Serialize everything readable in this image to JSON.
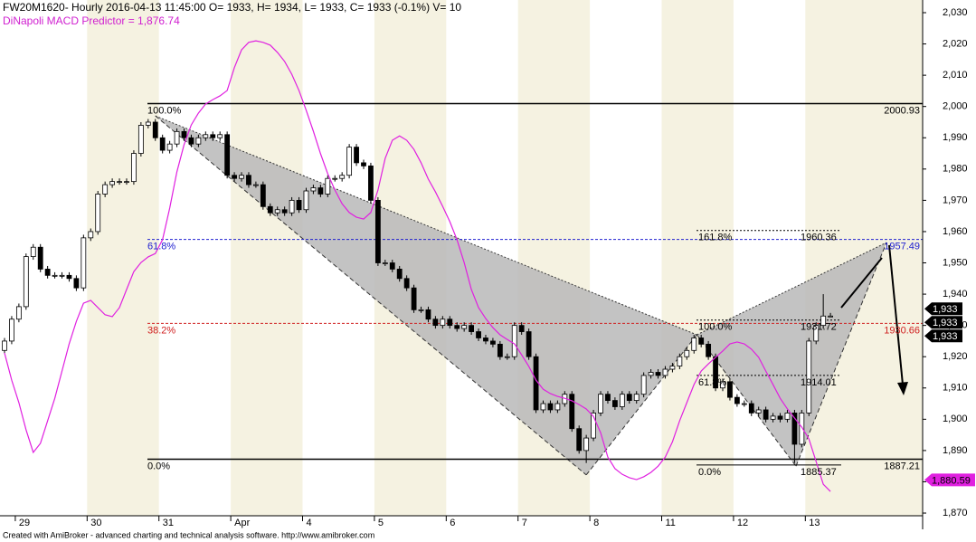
{
  "chart_data": {
    "type": "candlestick",
    "title": "FW20M1620- Hourly 2016-04-13 11:45:00 O= 1933, H= 1934, L= 1933, C= 1933 (-0.1%) V= 10",
    "subtitle": "DiNapoli MACD Predictor = 1,876.74",
    "footer": "Created with AmiBroker - advanced charting and technical analysis software. http://www.amibroker.com",
    "days": [
      "29",
      "30",
      "31",
      "Apr",
      "4",
      "5",
      "6",
      "7",
      "8",
      "11",
      "12",
      "13"
    ],
    "day_start": [
      2,
      12,
      22,
      32,
      42,
      52,
      62,
      72,
      82,
      92,
      102,
      112
    ],
    "open": [
      1922,
      1925,
      1932,
      1936,
      1952,
      1955,
      1948,
      1946,
      1946,
      1946,
      1945,
      1942,
      1958,
      1960,
      1972,
      1975,
      1976,
      1976,
      1976,
      1985,
      1994,
      1995,
      1990,
      1986,
      1988,
      1992,
      1990,
      1988,
      1990,
      1991,
      1990,
      1991,
      1978,
      1977,
      1978,
      1975,
      1975,
      1968,
      1966,
      1967,
      1966,
      1970,
      1967,
      1973,
      1974,
      1972,
      1977,
      1977,
      1978,
      1987,
      1982,
      1981,
      1970,
      1950,
      1950,
      1948,
      1945,
      1942,
      1935,
      1935,
      1932,
      1930,
      1932,
      1930,
      1929,
      1930,
      1928,
      1926,
      1925,
      1924,
      1920,
      1920,
      1930,
      1928,
      1920,
      1903,
      1905,
      1903,
      1905,
      1908,
      1897,
      1890,
      1894,
      1902,
      1908,
      1906,
      1904,
      1908,
      1906,
      1908,
      1914,
      1915,
      1914,
      1916,
      1917,
      1920,
      1922,
      1926,
      1924,
      1920,
      1910,
      1912,
      1907,
      1905,
      1905,
      1902,
      1903,
      1900,
      1901,
      1900,
      1902,
      1892,
      1902,
      1925,
      1930,
      1933
    ],
    "high": [
      1926,
      1933,
      1937,
      1953,
      1956,
      1956,
      1949,
      1947,
      1947,
      1947,
      1946,
      1959,
      1961,
      1973,
      1976,
      1977,
      1977,
      1977,
      1986,
      1995,
      1996,
      1996,
      1991,
      1989,
      1993,
      1993,
      1991,
      1991,
      1992,
      1992,
      1992,
      1992,
      1979,
      1979,
      1979,
      1976,
      1976,
      1969,
      1968,
      1968,
      1971,
      1971,
      1974,
      1975,
      1975,
      1978,
      1978,
      1979,
      1988,
      1988,
      1983,
      1982,
      1971,
      1951,
      1951,
      1949,
      1946,
      1943,
      1936,
      1936,
      1933,
      1933,
      1933,
      1931,
      1931,
      1931,
      1929,
      1927,
      1926,
      1925,
      1921,
      1931,
      1931,
      1929,
      1921,
      1906,
      1906,
      1906,
      1909,
      1909,
      1898,
      1895,
      1903,
      1909,
      1909,
      1907,
      1909,
      1909,
      1909,
      1915,
      1916,
      1916,
      1917,
      1918,
      1921,
      1923,
      1927,
      1927,
      1925,
      1921,
      1913,
      1913,
      1908,
      1906,
      1906,
      1904,
      1904,
      1902,
      1902,
      1903,
      1903,
      1903,
      1926,
      1931,
      1940,
      1934
    ],
    "low": [
      1921,
      1924,
      1931,
      1935,
      1951,
      1947,
      1945,
      1945,
      1945,
      1944,
      1941,
      1941,
      1957,
      1959,
      1971,
      1974,
      1975,
      1975,
      1975,
      1984,
      1993,
      1989,
      1985,
      1985,
      1987,
      1989,
      1987,
      1987,
      1989,
      1989,
      1989,
      1977,
      1976,
      1976,
      1974,
      1974,
      1967,
      1965,
      1965,
      1965,
      1965,
      1966,
      1966,
      1972,
      1971,
      1971,
      1976,
      1976,
      1977,
      1981,
      1980,
      1969,
      1949,
      1949,
      1947,
      1944,
      1941,
      1934,
      1934,
      1931,
      1929,
      1929,
      1929,
      1928,
      1928,
      1927,
      1925,
      1924,
      1923,
      1919,
      1919,
      1919,
      1927,
      1919,
      1902,
      1902,
      1902,
      1902,
      1904,
      1896,
      1889,
      1886,
      1893,
      1901,
      1905,
      1903,
      1903,
      1905,
      1905,
      1907,
      1913,
      1913,
      1913,
      1915,
      1916,
      1919,
      1921,
      1923,
      1919,
      1909,
      1909,
      1906,
      1904,
      1904,
      1901,
      1901,
      1899,
      1899,
      1899,
      1899,
      1886,
      1891,
      1901,
      1924,
      1929,
      1933
    ],
    "close": [
      1925,
      1932,
      1936,
      1952,
      1955,
      1948,
      1946,
      1946,
      1946,
      1945,
      1942,
      1958,
      1960,
      1972,
      1975,
      1976,
      1976,
      1976,
      1985,
      1994,
      1995,
      1990,
      1986,
      1988,
      1992,
      1990,
      1988,
      1990,
      1991,
      1990,
      1991,
      1978,
      1977,
      1978,
      1975,
      1975,
      1968,
      1966,
      1967,
      1966,
      1970,
      1967,
      1973,
      1974,
      1972,
      1977,
      1977,
      1978,
      1987,
      1982,
      1981,
      1970,
      1950,
      1950,
      1948,
      1945,
      1942,
      1935,
      1935,
      1932,
      1930,
      1932,
      1930,
      1929,
      1930,
      1928,
      1926,
      1925,
      1924,
      1920,
      1920,
      1930,
      1928,
      1920,
      1903,
      1905,
      1903,
      1905,
      1908,
      1897,
      1890,
      1894,
      1902,
      1908,
      1906,
      1904,
      1908,
      1906,
      1908,
      1914,
      1915,
      1914,
      1916,
      1917,
      1920,
      1922,
      1926,
      1924,
      1920,
      1910,
      1912,
      1907,
      1905,
      1905,
      1902,
      1903,
      1900,
      1901,
      1900,
      1902,
      1892,
      1902,
      1925,
      1930,
      1933,
      1933
    ],
    "up_color": "#ffffff",
    "down_color": "#000000",
    "macd": {
      "color": "#e020e0",
      "values": [
        1921.2,
        1912.5,
        1905.3,
        1896.6,
        1889.4,
        1892.3,
        1899.5,
        1906.7,
        1915.4,
        1924.1,
        1931.3,
        1937.1,
        1938.0,
        1935.7,
        1933.4,
        1932.8,
        1935.7,
        1941.5,
        1947.2,
        1950.1,
        1951.9,
        1953.0,
        1957.4,
        1967.5,
        1979.1,
        1987.8,
        1994.1,
        1997.9,
        2000.8,
        2002.2,
        2003.4,
        2005.1,
        2012.4,
        2018.1,
        2020.5,
        2021.0,
        2020.5,
        2019.6,
        2017.3,
        2014.4,
        2010.3,
        2005.1,
        1998.8,
        1992.1,
        1984.9,
        1978.5,
        1973.3,
        1968.9,
        1966.1,
        1964.6,
        1964.0,
        1966.1,
        1973.3,
        1983.4,
        1989.2,
        1990.6,
        1989.2,
        1986.3,
        1982.0,
        1976.8,
        1972.7,
        1968.1,
        1963.2,
        1957.4,
        1950.1,
        1941.5,
        1935.7,
        1932.2,
        1929.3,
        1927.0,
        1925.5,
        1924.1,
        1920.6,
        1916.9,
        1912.5,
        1909.6,
        1908.2,
        1907.3,
        1906.7,
        1905.9,
        1904.7,
        1903.3,
        1900.9,
        1895.7,
        1887.9,
        1884.2,
        1882.4,
        1881.3,
        1880.7,
        1881.6,
        1883.0,
        1885.0,
        1887.9,
        1892.8,
        1899.5,
        1905.3,
        1911.1,
        1915.4,
        1917.7,
        1919.8,
        1921.8,
        1924.1,
        1924.7,
        1924.1,
        1922.4,
        1919.8,
        1915.4,
        1911.1,
        1906.7,
        1903.3,
        1900.4,
        1897.5,
        1893.7,
        1886.5,
        1879.2,
        1876.9
      ]
    },
    "ylim": [
      1864.8,
      2034.05
    ],
    "yticks": [
      {
        "value": 1870,
        "label": "1,870"
      },
      {
        "value": 1880,
        "label": "1,880"
      },
      {
        "value": 1890,
        "label": "1,890"
      },
      {
        "value": 1900,
        "label": "1,900"
      },
      {
        "value": 1910,
        "label": "1,910"
      },
      {
        "value": 1920,
        "label": "1,920"
      },
      {
        "value": 1930,
        "label": "1,930"
      },
      {
        "value": 1940,
        "label": "1,940"
      },
      {
        "value": 1950,
        "label": "1,950"
      },
      {
        "value": 1960,
        "label": "1,960"
      },
      {
        "value": 1970,
        "label": "1,970"
      },
      {
        "value": 1980,
        "label": "1,980"
      },
      {
        "value": 1990,
        "label": "1,990"
      },
      {
        "value": 2000,
        "label": "2,000"
      },
      {
        "value": 2010,
        "label": "2,010"
      },
      {
        "value": 2020,
        "label": "2,020"
      },
      {
        "value": 2030,
        "label": "2,030"
      }
    ],
    "fib_left": [
      {
        "label": "100.0%",
        "value": 2000.93,
        "color": "#000000",
        "style": "solid"
      },
      {
        "label": "61.8%",
        "value": 1957.49,
        "color": "#2020d0",
        "style": "dashed"
      },
      {
        "label": "38.2%",
        "value": 1930.66,
        "color": "#d02020",
        "style": "dashed"
      },
      {
        "label": "0.0%",
        "value": 1887.21,
        "color": "#000000",
        "style": "solid"
      }
    ],
    "fib_right": [
      {
        "label": "161.8%",
        "value": 1960.36,
        "style": "dotted"
      },
      {
        "label": "100.0%",
        "value": 1931.72,
        "style": "dotted"
      },
      {
        "label": "61.8%",
        "value": 1914.01,
        "style": "dotted"
      },
      {
        "label": "0.0%",
        "value": 1885.37,
        "style": "solid"
      }
    ],
    "pattern": {
      "x": [
        21,
        81,
        96.4,
        110.2,
        122.8
      ],
      "y": [
        1997,
        1882.2,
        1927,
        1885,
        1956.5
      ],
      "color": "#b8b8b8"
    },
    "last_labels": [
      {
        "value": 1933,
        "label": "1,933"
      },
      {
        "value": 1933,
        "label": "1,933"
      },
      {
        "value": 1933,
        "label": "1,933"
      }
    ],
    "macd_last": {
      "value": 1880.59,
      "label": "1,880.59"
    }
  }
}
